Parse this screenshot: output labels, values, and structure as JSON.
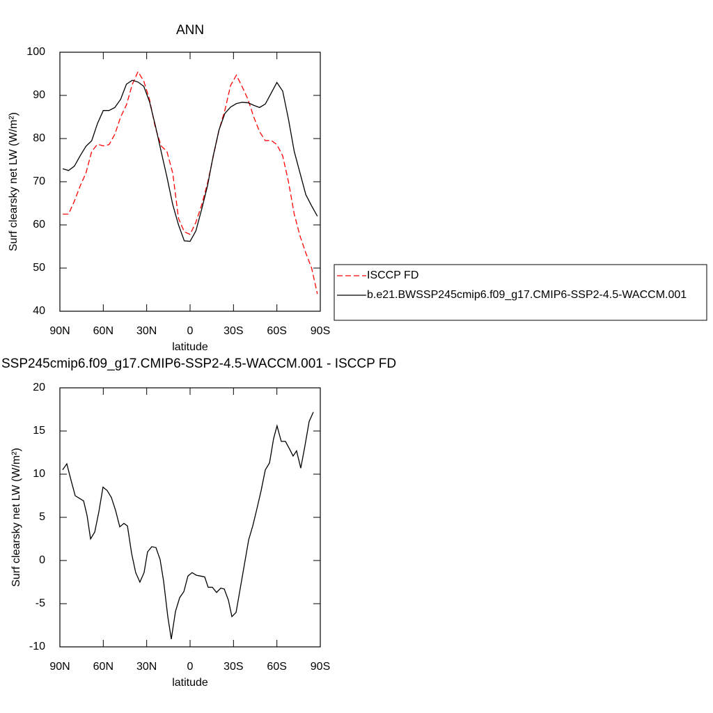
{
  "chart_data": [
    {
      "type": "line",
      "title": "ANN",
      "x_label": "latitude",
      "y_label": "Surf clearsky net LW (W/m²)",
      "x": [
        88,
        84,
        80,
        76,
        72,
        68,
        64,
        60,
        56,
        52,
        48,
        44,
        40,
        36,
        32,
        28,
        24,
        20,
        16,
        12,
        8,
        4,
        0,
        -4,
        -8,
        -12,
        -16,
        -20,
        -24,
        -28,
        -32,
        -36,
        -40,
        -44,
        -48,
        -52,
        -56,
        -60,
        -64,
        -68,
        -72,
        -76,
        -80,
        -84,
        -88
      ],
      "xlim": [
        90,
        -90
      ],
      "xticks": [
        {
          "value": 90,
          "label": "90N"
        },
        {
          "value": 60,
          "label": "60N"
        },
        {
          "value": 30,
          "label": "30N"
        },
        0,
        {
          "value": -30,
          "label": "30S"
        },
        {
          "value": -60,
          "label": "60S"
        },
        {
          "value": -90,
          "label": "90S"
        }
      ],
      "ylim": [
        40,
        100
      ],
      "yticks": [
        40,
        50,
        60,
        70,
        80,
        90,
        100
      ],
      "series": [
        {
          "name": "ISCCP FD",
          "color": "#ff0000",
          "dashed": true,
          "values": [
            62.5,
            62.5,
            65.5,
            69.0,
            72.0,
            77.0,
            78.7,
            78.3,
            78.6,
            81.0,
            85.0,
            87.8,
            92.5,
            95.5,
            93.3,
            89.0,
            82.5,
            78.3,
            77.0,
            72.0,
            61.5,
            58.4,
            57.8,
            60.6,
            64.6,
            69.6,
            75.8,
            82.0,
            86.5,
            92.3,
            94.7,
            92.0,
            89.1,
            85.0,
            81.6,
            79.5,
            79.6,
            78.6,
            76.0,
            70.0,
            62.5,
            57.4,
            53.5,
            50.0,
            44.0
          ]
        },
        {
          "name": "b.e21.BWSSP245cmip6.f09_g17.CMIP6-SSP2-4.5-WACCM.001",
          "color": "#000000",
          "dashed": false,
          "values": [
            73.0,
            72.6,
            73.6,
            76.0,
            78.2,
            79.5,
            83.5,
            86.5,
            86.5,
            87.2,
            89.1,
            92.6,
            93.5,
            93.1,
            92.1,
            88.5,
            83.0,
            77.0,
            71.1,
            64.7,
            60.0,
            56.3,
            56.2,
            58.6,
            63.6,
            69.0,
            76.0,
            82.0,
            85.8,
            87.3,
            88.1,
            88.4,
            88.3,
            87.7,
            87.2,
            88.0,
            90.5,
            93.0,
            91.0,
            84.5,
            77.0,
            72.0,
            67.0,
            64.4,
            62.0
          ]
        }
      ]
    },
    {
      "type": "line",
      "title": "SSP245cmip6.f09_g17.CMIP6-SSP2-4.5-WACCM.001 - ISCCP FD",
      "x_label": "latitude",
      "y_label": "Surf clearsky net LW (W/m²)",
      "x": [
        88.1,
        85.2,
        82.3,
        79.4,
        76.5,
        73.6,
        71.2,
        68.8,
        65.9,
        63.1,
        60.2,
        57.3,
        54.4,
        51.5,
        48.6,
        45.7,
        43.3,
        40.4,
        37.6,
        34.7,
        31.8,
        29.4,
        26.5,
        23.6,
        20.7,
        18.3,
        15.4,
        13.0,
        10.1,
        7.2,
        4.3,
        1.5,
        -1.4,
        -4.3,
        -7.2,
        -10.1,
        -12.5,
        -15.4,
        -18.3,
        -21.2,
        -23.6,
        -26.5,
        -28.9,
        -31.8,
        -34.7,
        -37.6,
        -40.5,
        -43.3,
        -46.2,
        -49.1,
        -52.0,
        -54.9,
        -57.7,
        -60.1,
        -63.0,
        -65.9,
        -68.8,
        -71.2,
        -73.6,
        -76.5,
        -79.4,
        -82.3,
        -85.2
      ],
      "xlim": [
        90,
        -90
      ],
      "xticks": [
        {
          "value": 90,
          "label": "90N"
        },
        {
          "value": 60,
          "label": "60N"
        },
        {
          "value": 30,
          "label": "30N"
        },
        0,
        {
          "value": -30,
          "label": "30S"
        },
        {
          "value": -60,
          "label": "60S"
        },
        {
          "value": -90,
          "label": "90S"
        }
      ],
      "ylim": [
        -10,
        20
      ],
      "yticks": [
        -10,
        -5,
        0,
        5,
        10,
        15,
        20
      ],
      "series": [
        {
          "color": "#000000",
          "dashed": false,
          "values": [
            10.5,
            11.2,
            9.3,
            7.5,
            7.2,
            6.9,
            5.2,
            2.5,
            3.3,
            5.6,
            8.5,
            8.1,
            7.3,
            5.8,
            3.9,
            4.3,
            4.0,
            0.8,
            -1.4,
            -2.5,
            -1.4,
            1.0,
            1.6,
            1.5,
            0.1,
            -2.4,
            -6.5,
            -9.1,
            -5.9,
            -4.3,
            -3.6,
            -1.8,
            -1.4,
            -1.7,
            -1.8,
            -1.9,
            -3.1,
            -3.1,
            -3.7,
            -3.2,
            -3.3,
            -4.6,
            -6.5,
            -6.0,
            -3.2,
            -0.4,
            2.4,
            4.0,
            6.0,
            8.1,
            10.5,
            11.3,
            14.1,
            15.6,
            13.8,
            13.8,
            12.9,
            12.1,
            12.7,
            10.7,
            13.3,
            16.1,
            17.2
          ]
        }
      ]
    }
  ]
}
